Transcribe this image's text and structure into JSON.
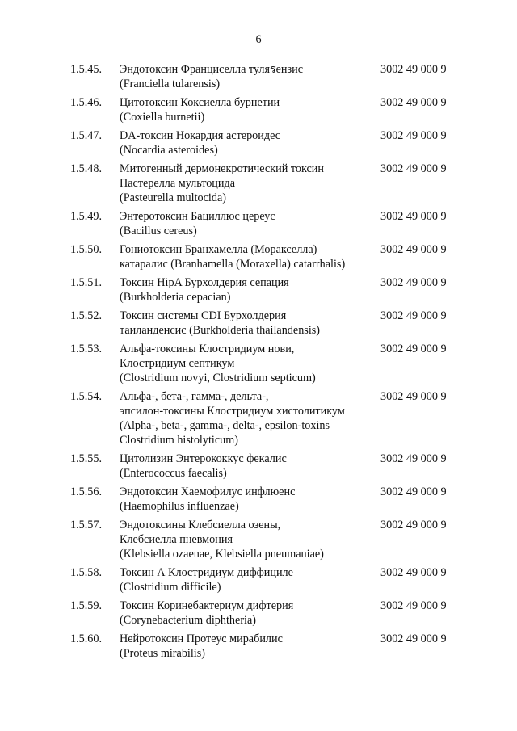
{
  "page_number": "6",
  "rows": [
    {
      "num": "1.5.45.",
      "lines": [
        "Эндотоксин Франциселла туляรензис",
        "(Franciella tularensis)"
      ],
      "code": "3002 49 000 9"
    },
    {
      "num": "1.5.46.",
      "lines": [
        "Цитотоксин Коксиелла бурнетии",
        "(Coxiella burnetii)"
      ],
      "code": "3002 49 000 9"
    },
    {
      "num": "1.5.47.",
      "lines": [
        "DA-токсин Нокардия астероидес",
        "(Nocardia asteroides)"
      ],
      "code": "3002 49 000 9"
    },
    {
      "num": "1.5.48.",
      "lines": [
        "Митогенный дермонекротический токсин",
        "Пастерелла мультоцида",
        "(Pasteurella multocida)"
      ],
      "code": "3002 49 000 9"
    },
    {
      "num": "1.5.49.",
      "lines": [
        "Энтеротоксин Бациллюс цереус",
        "(Bacillus cereus)"
      ],
      "code": "3002 49 000 9"
    },
    {
      "num": "1.5.50.",
      "lines": [
        "Гониотоксин Бранхамелла (Моракселла)",
        "катаралис (Branhamella (Moraxella) catarrhalis)"
      ],
      "code": "3002 49 000 9"
    },
    {
      "num": "1.5.51.",
      "lines": [
        "Токсин HipA Бурхолдерия сепация",
        "(Burkholderia cepacian)"
      ],
      "code": "3002 49 000 9"
    },
    {
      "num": "1.5.52.",
      "lines": [
        "Токсин системы CDI Бурхолдерия",
        "таиланденсис (Burkholderia thailandensis)"
      ],
      "code": "3002 49 000 9"
    },
    {
      "num": "1.5.53.",
      "lines": [
        "Альфа-токсины Клостридиум нови,",
        "Клостридиум септикум",
        "(Clostridium novyi, Clostridium septicum)"
      ],
      "code": "3002 49 000 9"
    },
    {
      "num": "1.5.54.",
      "lines": [
        "Альфа-, бета-, гамма-, дельта-,",
        "эпсилон-токсины Клостридиум хистолитикум",
        "(Alpha-, beta-, gamma-, delta-, epsilon-toxins",
        "Clostridium histolyticum)"
      ],
      "code": "3002 49 000 9"
    },
    {
      "num": "1.5.55.",
      "lines": [
        "Цитолизин Энтерококкус фекалис",
        "(Enterococcus faecalis)"
      ],
      "code": "3002 49 000 9"
    },
    {
      "num": "1.5.56.",
      "lines": [
        "Эндотоксин Хаемофилус инфлюенс",
        "(Haemophilus influenzae)"
      ],
      "code": "3002 49 000 9"
    },
    {
      "num": "1.5.57.",
      "lines": [
        "Эндотоксины Клебсиелла озены,",
        "Клебсиелла пневмония",
        "(Klebsiella ozaenae, Klebsiella pneumaniae)"
      ],
      "code": "3002 49 000 9"
    },
    {
      "num": "1.5.58.",
      "lines": [
        "Токсин А Клостридиум диффициле",
        "(Clostridium difficile)"
      ],
      "code": "3002 49 000 9"
    },
    {
      "num": "1.5.59.",
      "lines": [
        "Токсин Коринебактериум дифтерия",
        "(Corynebacterium diphtheria)"
      ],
      "code": "3002 49 000 9"
    },
    {
      "num": "1.5.60.",
      "lines": [
        "Нейротоксин Протеус мирабилис",
        "(Proteus mirabilis)"
      ],
      "code": "3002 49 000 9"
    }
  ]
}
